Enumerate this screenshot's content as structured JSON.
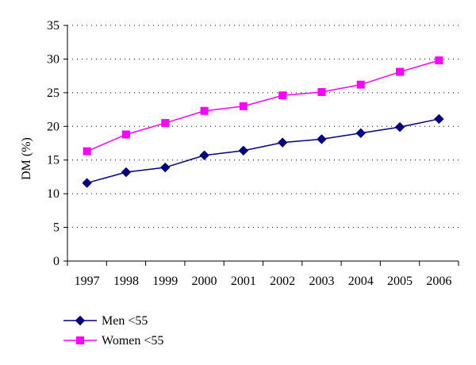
{
  "chart_data": {
    "type": "line",
    "title": "",
    "xlabel": "",
    "ylabel": "DM (%)",
    "ylim": [
      0,
      35
    ],
    "yticks": [
      0,
      5,
      10,
      15,
      20,
      25,
      30,
      35
    ],
    "grid": "horizontal-dotted",
    "legend_position": "bottom-left",
    "categories": [
      "1997",
      "1998",
      "1999",
      "2000",
      "2001",
      "2002",
      "2003",
      "2004",
      "2005",
      "2006"
    ],
    "series": [
      {
        "name": "Men <55",
        "color": "#000080",
        "marker": "diamond",
        "values": [
          11.6,
          13.2,
          13.9,
          15.7,
          16.4,
          17.6,
          18.1,
          19.0,
          19.9,
          21.1
        ]
      },
      {
        "name": "Women <55",
        "color": "#ff00ff",
        "marker": "square",
        "values": [
          16.3,
          18.8,
          20.5,
          22.3,
          23.0,
          24.6,
          25.1,
          26.2,
          28.1,
          29.8
        ]
      }
    ]
  }
}
